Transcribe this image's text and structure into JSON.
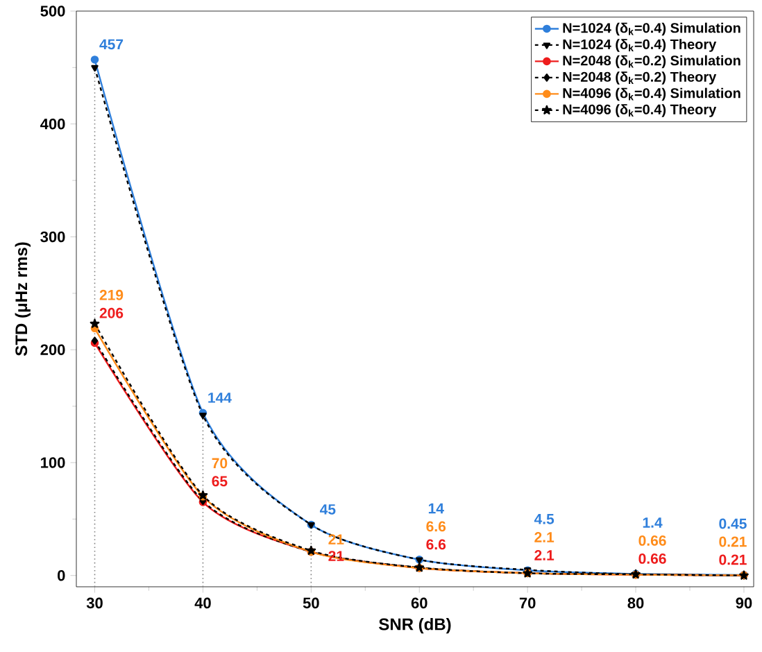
{
  "chart_data": {
    "type": "line",
    "xlabel": "SNR (dB)",
    "ylabel": "STD (μHz rms)",
    "x": [
      30,
      40,
      50,
      60,
      70,
      80,
      90
    ],
    "xlim": [
      28.3,
      90.9
    ],
    "xticks": [
      30,
      40,
      50,
      60,
      70,
      80,
      90
    ],
    "ylim": [
      -10,
      500
    ],
    "yticks": [
      0,
      100,
      200,
      300,
      400,
      500
    ],
    "grid": false,
    "legend": "top right",
    "series": [
      {
        "name": "N=1024 (δ$_{k}$=0.4) Simulation",
        "color": "#2f7fdb",
        "marker": "circle",
        "line_style": "solid",
        "values": [
          457,
          144,
          45,
          14,
          4.5,
          1.4,
          0.45
        ],
        "value_labels": [
          "457",
          "144",
          "45",
          "14",
          "4.5",
          "1.4",
          "0.45"
        ]
      },
      {
        "name": "N=1024 (δ$_{k}$=0.4) Theory",
        "color": "#000000",
        "marker": "triangle",
        "line_style": "dashed",
        "values": [
          450,
          142,
          45,
          14,
          5,
          1,
          0
        ]
      },
      {
        "name": "N=2048 (δ$_{k}$=0.2) Simulation",
        "color": "#ee1c1c",
        "marker": "circle",
        "line_style": "solid",
        "values": [
          206,
          65,
          21,
          6.6,
          2.1,
          0.66,
          0.21
        ],
        "value_labels": [
          "206",
          "65",
          "21",
          "6.6",
          "2.1",
          "0.66",
          "0.21"
        ]
      },
      {
        "name": "N=2048 (δ$_{k}$=0.2) Theory",
        "color": "#000000",
        "marker": "diamond",
        "line_style": "dashed",
        "values": [
          208,
          66,
          21,
          7,
          2,
          1,
          0
        ]
      },
      {
        "name": "N=4096 (δ$_{k}$=0.4) Simulation",
        "color": "#ff8c1a",
        "marker": "circle",
        "line_style": "solid",
        "values": [
          219,
          70,
          21,
          6.6,
          2.1,
          0.66,
          0.21
        ],
        "value_labels": [
          "219",
          "70",
          "21",
          "6.6",
          "2.1",
          "0.66",
          "0.21"
        ]
      },
      {
        "name": "N=4096 (δ$_{k}$=0.4) Theory",
        "color": "#000000",
        "marker": "star",
        "line_style": "dashed",
        "values": [
          223,
          71,
          22,
          7,
          2,
          1,
          0
        ]
      }
    ],
    "ref_lines": [
      {
        "axis": "x",
        "value": 30,
        "color": "#808080",
        "line_style": "dotted"
      },
      {
        "axis": "x",
        "value": 40,
        "color": "#808080",
        "line_style": "dotted"
      },
      {
        "axis": "x",
        "value": 50,
        "color": "#808080",
        "line_style": "dotted"
      }
    ]
  }
}
